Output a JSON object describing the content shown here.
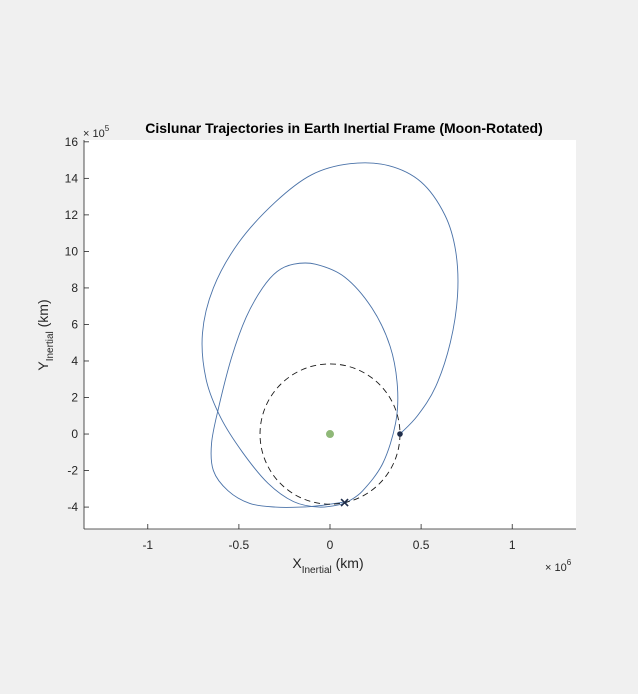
{
  "chart_data": {
    "type": "line",
    "title": "Cislunar Trajectories in Earth Inertial Frame (Moon-Rotated)",
    "xlabel_main": "X",
    "xlabel_sub": "Inertial",
    "xlabel_unit": " (km)",
    "ylabel_main": "Y",
    "ylabel_sub": "Inertial",
    "ylabel_unit": " (km)",
    "x_multiplier_base": "× 10",
    "x_multiplier_exp": "6",
    "y_multiplier_base": "× 10",
    "y_multiplier_exp": "5",
    "xlim": [
      -1350000,
      1350000
    ],
    "ylim": [
      -520000,
      1610000
    ],
    "x_ticks": [
      -1000000,
      -500000,
      0,
      500000,
      1000000
    ],
    "x_tick_labels": [
      "-1",
      "-0.5",
      "0",
      "0.5",
      "1"
    ],
    "y_ticks": [
      -400000,
      -200000,
      0,
      200000,
      400000,
      600000,
      800000,
      1000000,
      1200000,
      1400000,
      1600000
    ],
    "y_tick_labels": [
      "-4",
      "-2",
      "0",
      "2",
      "4",
      "6",
      "8",
      "10",
      "12",
      "14",
      "16"
    ],
    "grid": false,
    "legend": "none",
    "colors": {
      "trajectory": "#4a72a8",
      "moon_orbit": "#1a1a1a",
      "earth": "#8fb878",
      "marker": "#1f2d4a"
    },
    "series": [
      {
        "style": "solid",
        "color_key": "trajectory",
        "x": [
          384000,
          480000,
          580000,
          660000,
          700000,
          690000,
          630000,
          500000,
          320000,
          110000,
          -100000,
          -300000,
          -500000,
          -640000,
          -700000,
          -680000,
          -600000,
          -480000,
          -340000,
          -200000,
          -60000,
          60000,
          100000
        ],
        "y": [
          0,
          100000,
          260000,
          500000,
          760000,
          1000000,
          1200000,
          1380000,
          1470000,
          1480000,
          1420000,
          1270000,
          1050000,
          800000,
          550000,
          300000,
          90000,
          -100000,
          -270000,
          -370000,
          -400000,
          -385000,
          -370000
        ]
      },
      {
        "style": "solid",
        "color_key": "trajectory",
        "x": [
          100000,
          180000,
          290000,
          360000,
          370000,
          330000,
          230000,
          80000,
          -80000,
          -200000,
          -290000,
          -370000,
          -460000,
          -540000,
          -610000,
          -650000,
          -640000,
          -560000,
          -440000,
          -300000,
          -160000,
          -40000,
          60000,
          100000
        ],
        "y": [
          -370000,
          -310000,
          -160000,
          60000,
          260000,
          480000,
          690000,
          860000,
          930000,
          930000,
          890000,
          800000,
          640000,
          420000,
          150000,
          -50000,
          -200000,
          -310000,
          -380000,
          -400000,
          -400000,
          -390000,
          -375000,
          -370000
        ]
      },
      {
        "style": "dashed",
        "color_key": "moon_orbit",
        "circle": {
          "cx": 0,
          "cy": 0,
          "r": 384000
        }
      }
    ],
    "points": [
      {
        "label": "earth",
        "x": 0,
        "y": 0,
        "shape": "dot",
        "color_key": "earth"
      },
      {
        "label": "start",
        "x": 384000,
        "y": 0,
        "shape": "dot",
        "color_key": "marker"
      },
      {
        "label": "end",
        "x": 80000,
        "y": -375000,
        "shape": "x",
        "color_key": "marker"
      }
    ]
  }
}
